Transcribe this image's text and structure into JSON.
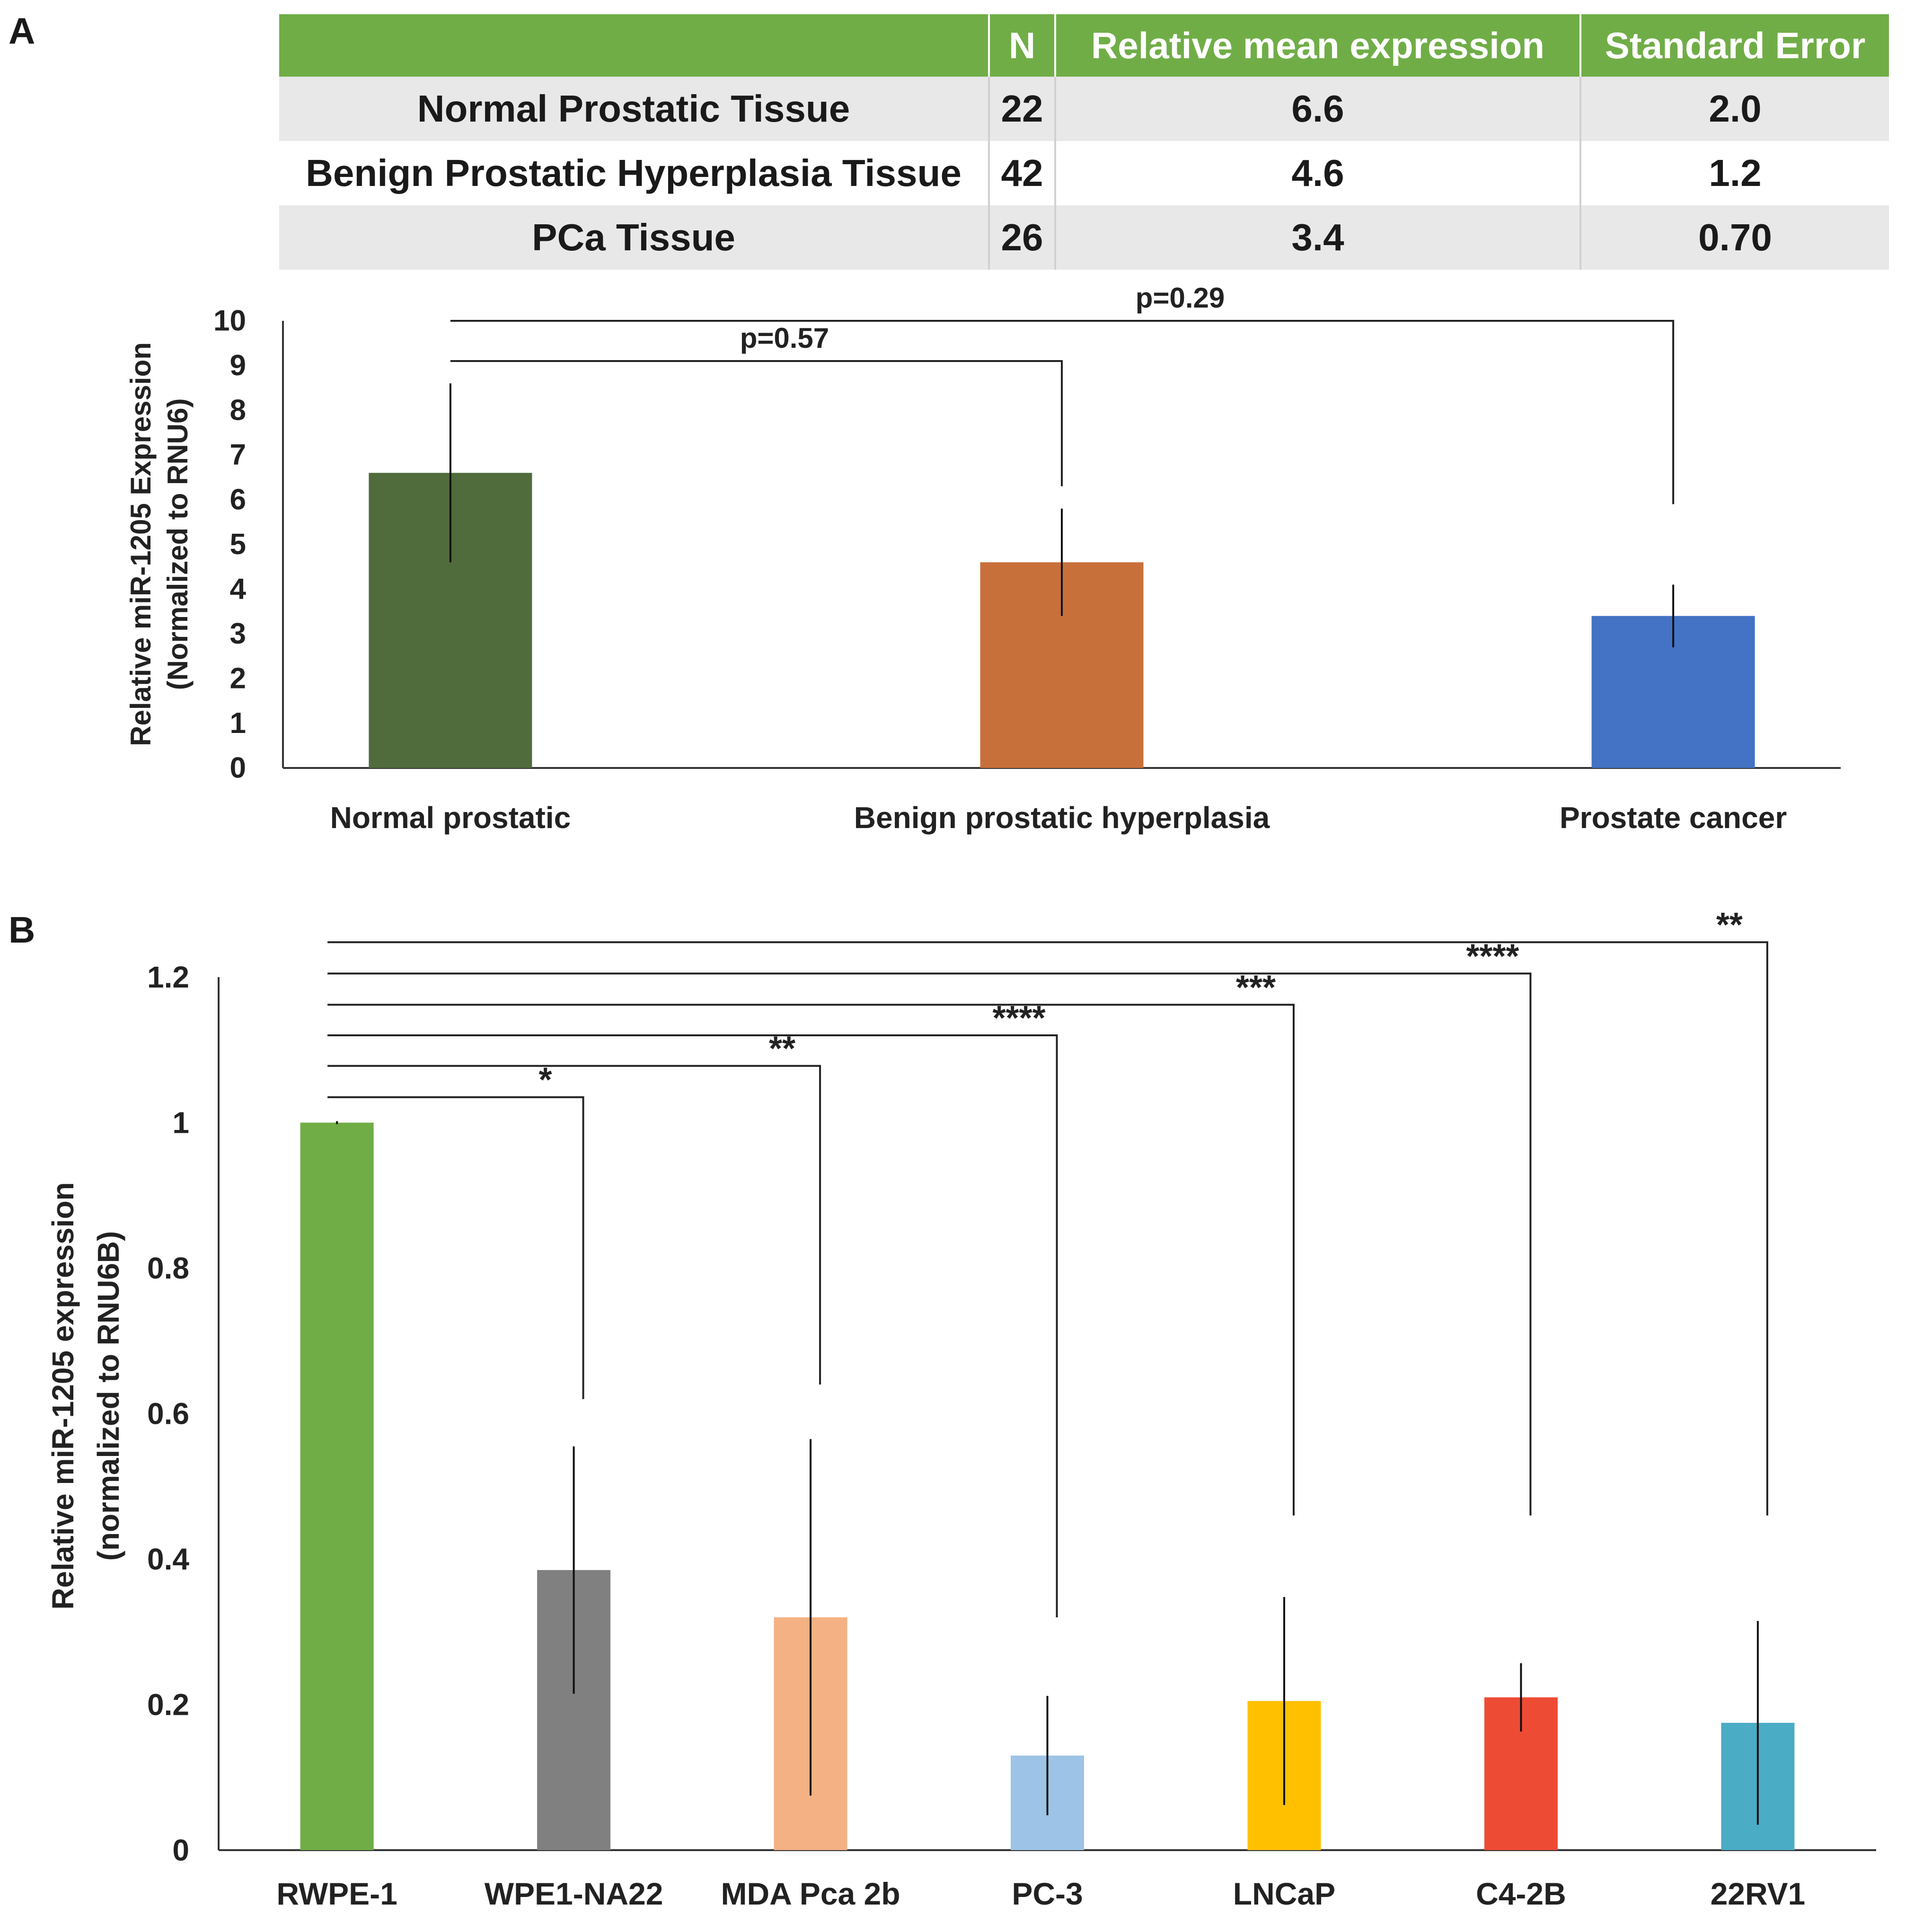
{
  "panel_labels": {
    "a": "A",
    "b": "B"
  },
  "summary_table": {
    "headers": [
      "",
      "N",
      "Relative mean expression",
      "Standard Error"
    ],
    "rows": [
      [
        "Normal Prostatic Tissue",
        "22",
        "6.6",
        "2.0"
      ],
      [
        "Benign Prostatic Hyperplasia Tissue",
        "42",
        "4.6",
        "1.2"
      ],
      [
        "PCa Tissue",
        "26",
        "3.4",
        "0.70"
      ]
    ],
    "colors": {
      "header_bg": "#70ad47",
      "header_text": "#ffffff",
      "stripe": "#e8e8e8"
    }
  },
  "chart_data": [
    {
      "id": "A",
      "type": "bar",
      "title": "",
      "xlabel": "",
      "ylabel_lines": [
        "Relative miR-1205 Expression",
        "(Normalized to RNU6)"
      ],
      "categories": [
        "Normal prostatic",
        "Benign prostatic hyperplasia",
        "Prostate cancer"
      ],
      "values": [
        6.6,
        4.6,
        3.4
      ],
      "errors": [
        2.0,
        1.2,
        0.7
      ],
      "colors": [
        "#506b3c",
        "#c8703a",
        "#4472c4"
      ],
      "ylim": [
        0,
        10
      ],
      "yticks": [
        0,
        1,
        2,
        3,
        4,
        5,
        6,
        7,
        8,
        9,
        10
      ],
      "grid": false,
      "annotations": [
        {
          "from": 0,
          "to": 1,
          "label": "p=0.57",
          "level": 9.1,
          "drop": 6.3
        },
        {
          "from": 0,
          "to": 2,
          "label": "p=0.29",
          "level": 10.0,
          "drop": 5.9
        }
      ]
    },
    {
      "id": "B",
      "type": "bar",
      "title": "",
      "xlabel": "",
      "ylabel_lines": [
        "Relative miR-1205 expression",
        "(normalized to RNU6B)"
      ],
      "categories": [
        "RWPE-1",
        "WPE1-NA22",
        "MDA Pca 2b",
        "PC-3",
        "LNCaP",
        "C4-2B",
        "22RV1"
      ],
      "values": [
        1.0,
        0.385,
        0.32,
        0.13,
        0.205,
        0.21,
        0.175
      ],
      "errors": [
        0.002,
        0.17,
        0.245,
        0.082,
        0.143,
        0.047,
        0.14
      ],
      "colors": [
        "#70ad47",
        "#808080",
        "#f4b183",
        "#9dc3e6",
        "#ffc000",
        "#ee4b35",
        "#4bacc6"
      ],
      "ylim": [
        0,
        1.2
      ],
      "yticks": [
        "0",
        "0.2",
        "0.4",
        "0.6",
        "0.8",
        "1",
        "1.2"
      ],
      "grid": false,
      "annotations": [
        {
          "from": 0,
          "to": 1,
          "label": "*",
          "level": 1.035,
          "drop": 0.62
        },
        {
          "from": 0,
          "to": 2,
          "label": "**",
          "level": 1.078,
          "drop": 0.64
        },
        {
          "from": 0,
          "to": 3,
          "label": "****",
          "level": 1.12,
          "drop": 0.32
        },
        {
          "from": 0,
          "to": 4,
          "label": "***",
          "level": 1.162,
          "drop": 0.46
        },
        {
          "from": 0,
          "to": 5,
          "label": "****",
          "level": 1.205,
          "drop": 0.46
        },
        {
          "from": 0,
          "to": 6,
          "label": "**",
          "level": 1.248,
          "drop": 0.46
        }
      ]
    }
  ]
}
